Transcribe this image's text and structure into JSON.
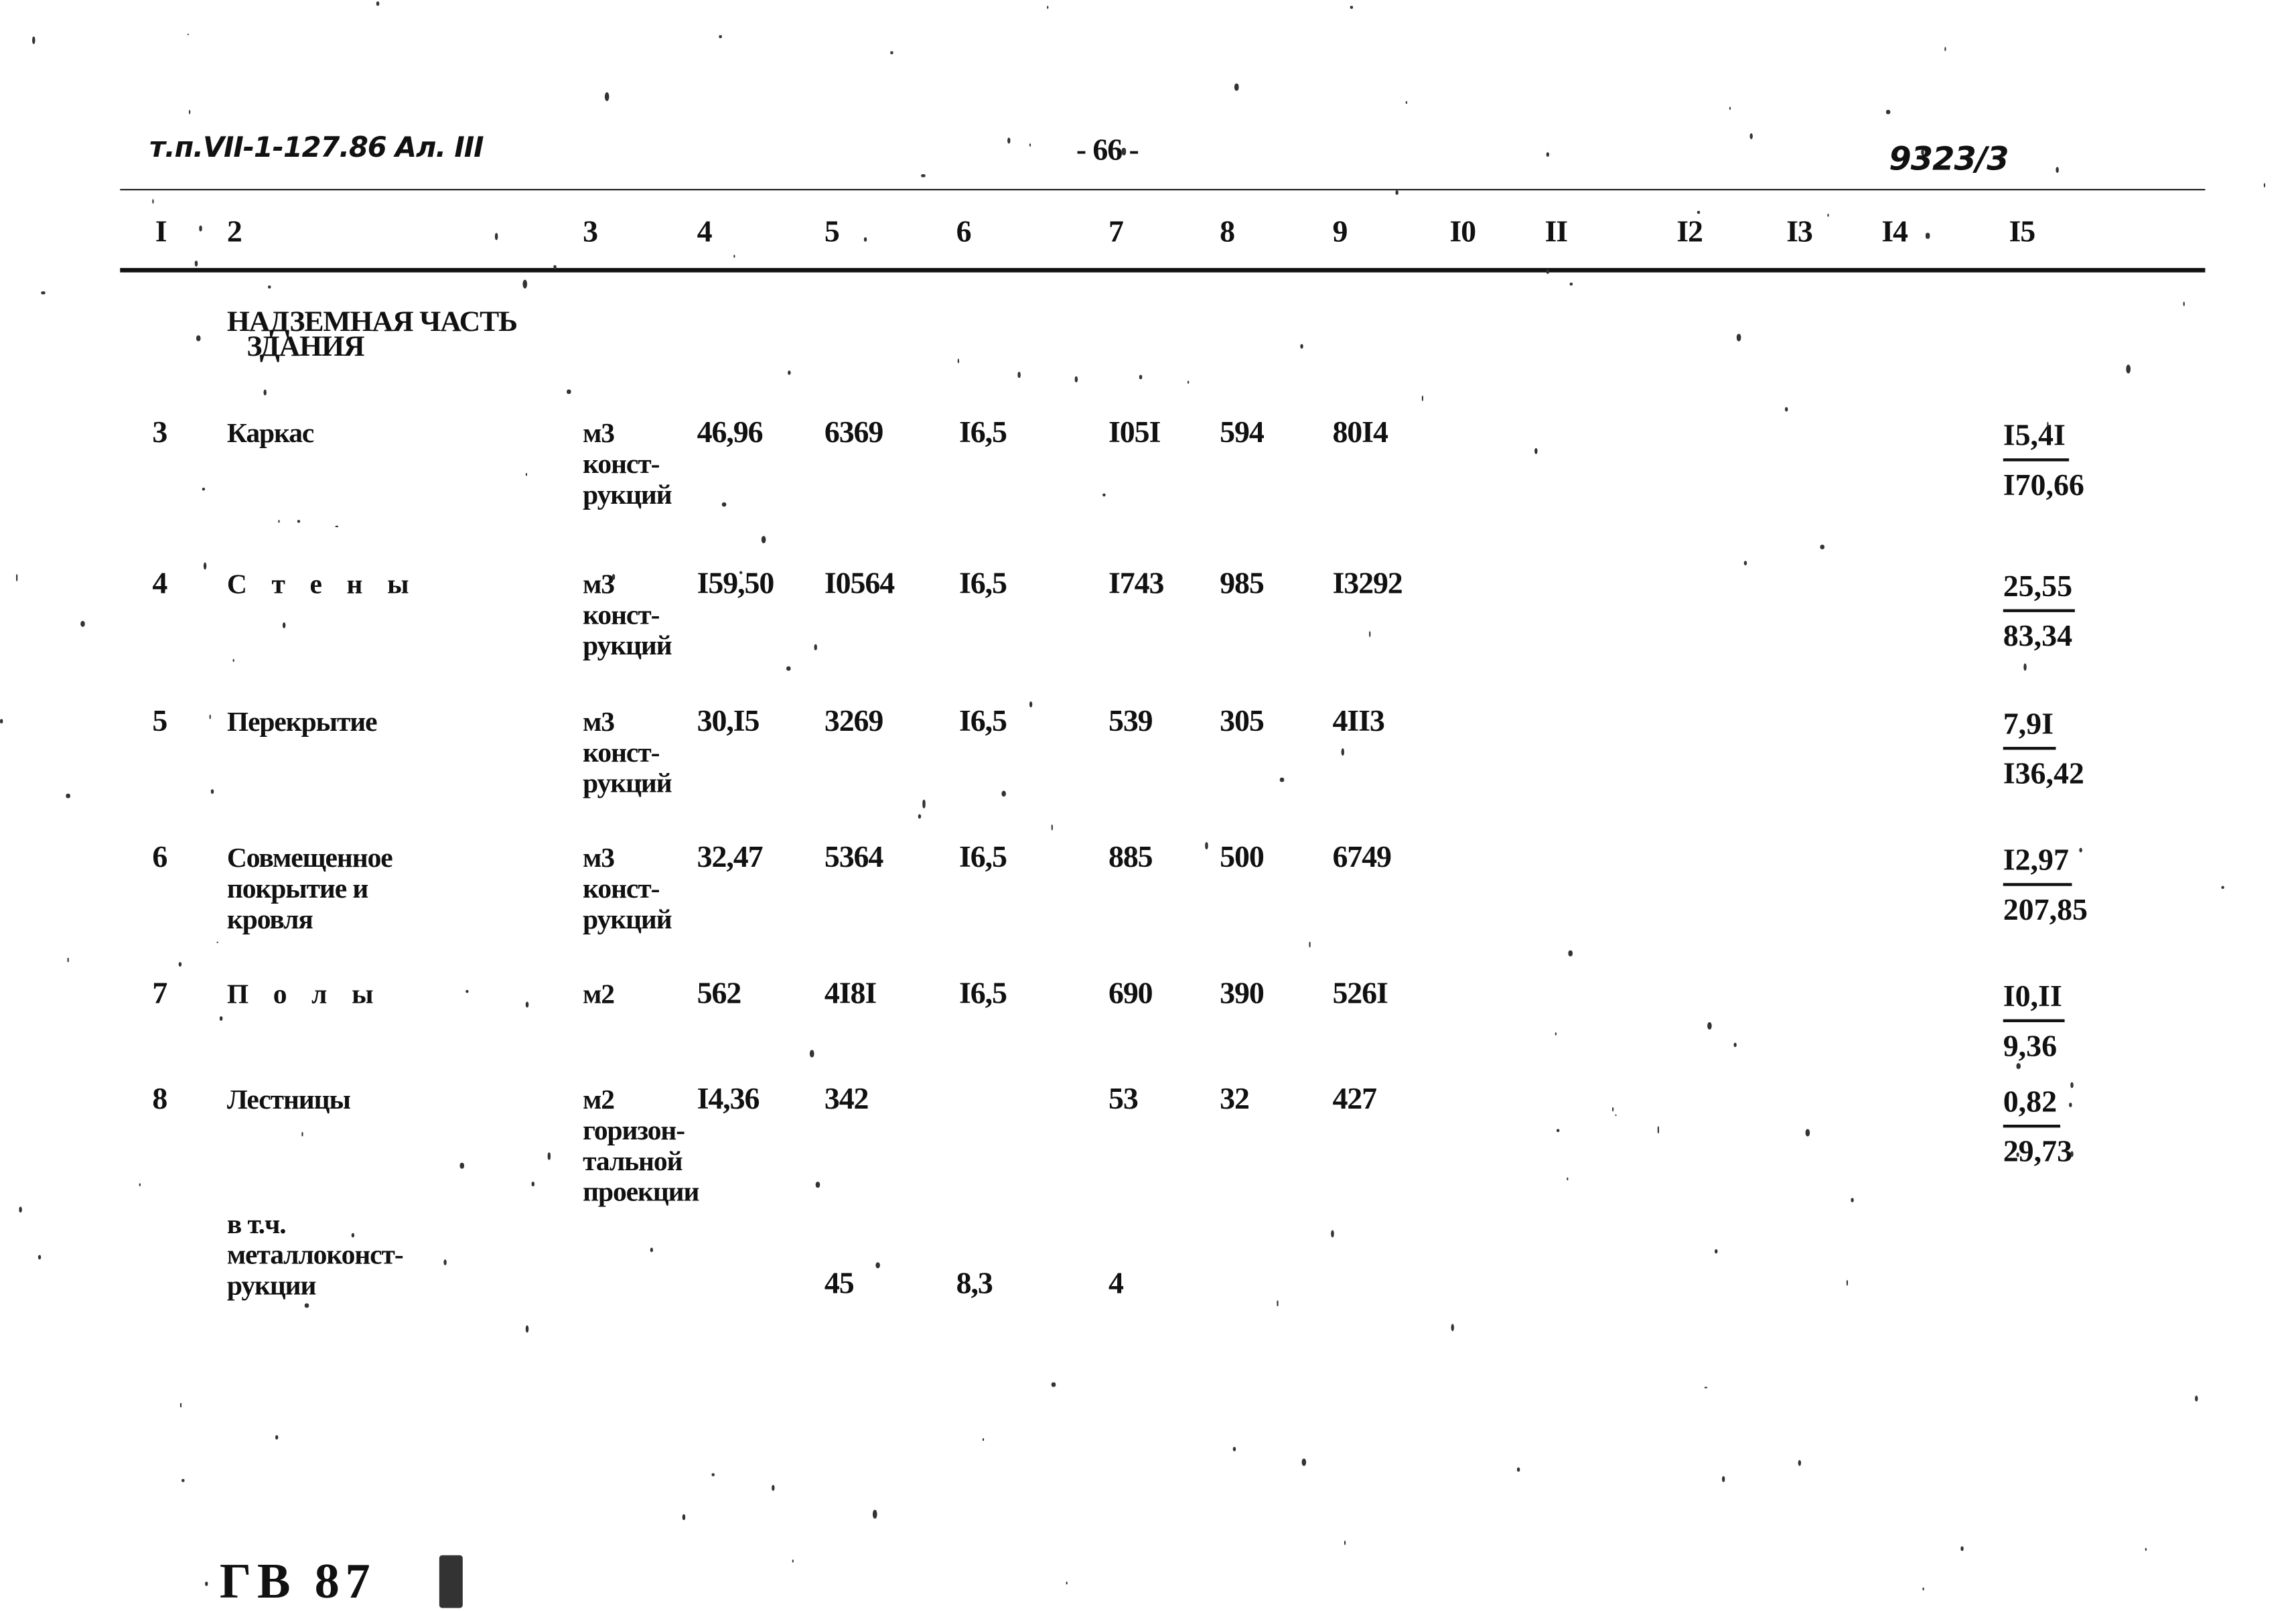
{
  "header": {
    "doc_code": "т.п.VII-1-127.86 Ал. III",
    "page_number": "- 66 -",
    "order_number": "9323/3"
  },
  "columns": [
    "I",
    "2",
    "3",
    "4",
    "5",
    "6",
    "7",
    "8",
    "9",
    "I0",
    "II",
    "I2",
    "I3",
    "I4",
    "I5"
  ],
  "section_title": "НАДЗЕМНАЯ ЧАСТЬ\n   ЗДАНИЯ",
  "rows": [
    {
      "no": "3",
      "name": "Каркас",
      "unit": "м3\nконст-\nрукций",
      "c4": "46,96",
      "c5": "6369",
      "c6": "I6,5",
      "c7": "I05I",
      "c8": "594",
      "c9": "80I4",
      "c15_top": "I5,4I",
      "c15_bottom": "I70,66"
    },
    {
      "no": "4",
      "name": "С т е н ы",
      "unit": "м3\nконст-\nрукций",
      "c4": "I59,50",
      "c5": "I0564",
      "c6": "I6,5",
      "c7": "I743",
      "c8": "985",
      "c9": "I3292",
      "c15_top": "25,55",
      "c15_bottom": "83,34"
    },
    {
      "no": "5",
      "name": "Перекрытие",
      "unit": "м3\nконст-\nрукций",
      "c4": "30,I5",
      "c5": "3269",
      "c6": "I6,5",
      "c7": "539",
      "c8": "305",
      "c9": "4II3",
      "c15_top": "7,9I",
      "c15_bottom": "I36,42"
    },
    {
      "no": "6",
      "name": "Совмещенное\nпокрытие и\nкровля",
      "unit": "м3\nконст-\nрукций",
      "c4": "32,47",
      "c5": "5364",
      "c6": "I6,5",
      "c7": "885",
      "c8": "500",
      "c9": "6749",
      "c15_top": "I2,97",
      "c15_bottom": "207,85"
    },
    {
      "no": "7",
      "name": "П о л ы",
      "unit": "м2",
      "c4": "562",
      "c5": "4I8I",
      "c6": "I6,5",
      "c7": "690",
      "c8": "390",
      "c9": "526I",
      "c15_top": "I0,II",
      "c15_bottom": "9,36"
    },
    {
      "no": "8",
      "name": "Лестницы",
      "unit": "м2\nгоризон-\nтальной\nпроекции",
      "c4": "I4,36",
      "c5": "342",
      "c6": "",
      "c7": "53",
      "c8": "32",
      "c9": "427",
      "c15_top": "0,82",
      "c15_bottom": "29,73"
    }
  ],
  "subrow": {
    "name": "в т.ч.\nметаллоконст-\nрукции",
    "c5": "45",
    "c6": "8,3",
    "c7": "4"
  },
  "stamp": "ГВ 87"
}
